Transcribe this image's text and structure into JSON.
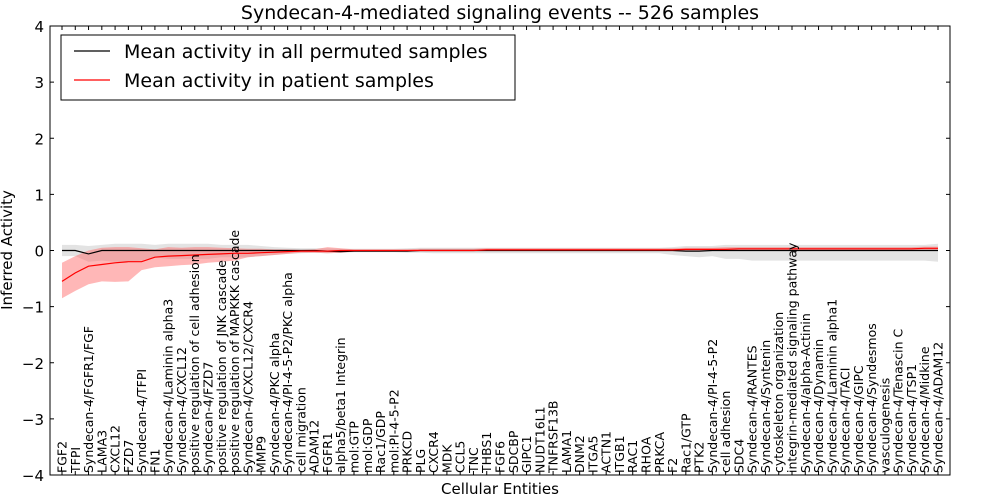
{
  "chart_data": {
    "type": "line",
    "title": "Syndecan-4-mediated signaling events -- 526 samples",
    "xlabel": "Cellular Entities",
    "ylabel": "Inferred Activity",
    "ylim": [
      -4,
      4
    ],
    "yticks": [
      -4,
      -3,
      -2,
      -1,
      0,
      1,
      2,
      3,
      4
    ],
    "ytick_labels": [
      "−4",
      "−3",
      "−2",
      "−1",
      "0",
      "1",
      "2",
      "3",
      "4"
    ],
    "legend_position": "top-left",
    "colors": {
      "permuted": "#000000",
      "patient": "#ff0000",
      "permuted_band": "#d0d0d0",
      "patient_band": "#ff6060"
    },
    "categories": [
      "FGF2",
      "TFPI",
      "Syndecan-4/FGFR1/FGF",
      "LAMA3",
      "CXCL12",
      "FZD7",
      "Syndecan-4/TFPI",
      "FN1",
      "Syndecan-4/Laminin alpha3",
      "Syndecan-4/CXCL12",
      "positive regulation of cell adhesion",
      "Syndecan-4/FZD7",
      "positive regulation of JNK cascade",
      "positive regulation of MAPKKK cascade",
      "Syndecan-4/CXCL12/CXCR4",
      "MMP9",
      "Syndecan-4/PKC alpha",
      "Syndecan-4/PI-4-5-P2/PKC alpha",
      "cell migration",
      "ADAM12",
      "FGFR1",
      "alpha5/beta1 Integrin",
      "mol:GTP",
      "mol:GDP",
      "Rac1/GDP",
      "mol:PI-4-5-P2",
      "PRKCD",
      "PLG",
      "CXCR4",
      "MDK",
      "CCL5",
      "TNC",
      "THBS1",
      "FGF6",
      "SDCBP",
      "GIPC1",
      "NUDT16L1",
      "TNFRSF13B",
      "LAMA1",
      "DNM2",
      "ITGA5",
      "ACTN1",
      "ITGB1",
      "RAC1",
      "RHOA",
      "PRKCA",
      "F2",
      "Rac1/GTP",
      "PTK2",
      "Syndecan-4/PI-4-5-P2",
      "cell adhesion",
      "SDC4",
      "Syndecan-4/RANTES",
      "Syndecan-4/Syntenin",
      "cytoskeleton organization",
      "integrin-mediated signaling pathway",
      "Syndecan-4/alpha-Actinin",
      "Syndecan-4/Dynamin",
      "Syndecan-4/Laminin alpha1",
      "Syndecan-4/TACI",
      "Syndecan-4/GIPC",
      "Syndecan-4/Syndesmos",
      "vasculogenesis",
      "Syndecan-4/Tenascin C",
      "Syndecan-4/TSP1",
      "Syndecan-4/Midkine",
      "Syndecan-4/ADAM12"
    ],
    "series": [
      {
        "name": "Mean activity in all permuted samples",
        "values": [
          0.0,
          0.0,
          -0.06,
          0.0,
          0.0,
          0.0,
          0.0,
          0.0,
          0.0,
          0.0,
          0.0,
          0.0,
          0.0,
          0.0,
          0.0,
          0.0,
          0.0,
          0.0,
          0.0,
          0.0,
          -0.01,
          -0.02,
          -0.01,
          -0.01,
          -0.01,
          -0.01,
          -0.01,
          0.0,
          0.0,
          0.0,
          0.0,
          0.0,
          0.0,
          0.0,
          0.0,
          0.0,
          0.0,
          0.0,
          0.0,
          0.0,
          0.0,
          0.0,
          0.0,
          0.0,
          0.0,
          0.0,
          0.0,
          -0.01,
          -0.01,
          0.0,
          0.0,
          0.0,
          0.0,
          0.0,
          0.0,
          0.0,
          0.0,
          0.0,
          0.0,
          0.0,
          0.0,
          0.0,
          0.0,
          0.0,
          0.0,
          0.0,
          0.0
        ],
        "lower": [
          -0.1,
          -0.1,
          -0.2,
          -0.18,
          -0.2,
          -0.2,
          -0.18,
          -0.12,
          -0.15,
          -0.15,
          -0.15,
          -0.15,
          -0.12,
          -0.12,
          -0.12,
          -0.1,
          -0.08,
          -0.06,
          -0.05,
          -0.04,
          -0.05,
          -0.04,
          -0.03,
          -0.03,
          -0.03,
          -0.03,
          -0.04,
          -0.04,
          -0.05,
          -0.05,
          -0.05,
          -0.05,
          -0.05,
          -0.05,
          -0.05,
          -0.05,
          -0.05,
          -0.05,
          -0.05,
          -0.05,
          -0.05,
          -0.05,
          -0.05,
          -0.05,
          -0.05,
          -0.05,
          -0.08,
          -0.1,
          -0.12,
          -0.1,
          -0.15,
          -0.15,
          -0.18,
          -0.18,
          -0.18,
          -0.18,
          -0.18,
          -0.18,
          -0.18,
          -0.18,
          -0.18,
          -0.18,
          -0.18,
          -0.18,
          -0.18,
          -0.18,
          -0.2
        ],
        "upper": [
          0.1,
          0.1,
          0.08,
          0.1,
          0.12,
          0.12,
          0.12,
          0.1,
          0.12,
          0.12,
          0.12,
          0.12,
          0.1,
          0.1,
          0.1,
          0.08,
          0.06,
          0.05,
          0.04,
          0.04,
          0.04,
          0.03,
          0.03,
          0.03,
          0.03,
          0.03,
          0.04,
          0.05,
          0.05,
          0.05,
          0.05,
          0.05,
          0.05,
          0.05,
          0.05,
          0.05,
          0.05,
          0.05,
          0.05,
          0.05,
          0.05,
          0.05,
          0.05,
          0.05,
          0.05,
          0.05,
          0.06,
          0.08,
          0.08,
          0.08,
          0.1,
          0.1,
          0.1,
          0.1,
          0.1,
          0.1,
          0.1,
          0.1,
          0.1,
          0.1,
          0.1,
          0.1,
          0.1,
          0.1,
          0.1,
          0.1,
          0.12
        ]
      },
      {
        "name": "Mean activity in patient samples",
        "values": [
          -0.55,
          -0.4,
          -0.28,
          -0.25,
          -0.22,
          -0.2,
          -0.2,
          -0.12,
          -0.1,
          -0.09,
          -0.08,
          -0.07,
          -0.06,
          -0.05,
          -0.05,
          -0.04,
          -0.03,
          -0.02,
          -0.01,
          -0.01,
          -0.01,
          0.0,
          0.0,
          0.0,
          0.0,
          0.0,
          0.0,
          0.0,
          0.0,
          0.0,
          0.0,
          0.0,
          0.01,
          0.01,
          0.01,
          0.01,
          0.01,
          0.01,
          0.01,
          0.01,
          0.01,
          0.01,
          0.01,
          0.01,
          0.01,
          0.01,
          0.01,
          0.02,
          0.02,
          0.02,
          0.02,
          0.03,
          0.03,
          0.03,
          0.03,
          0.03,
          0.03,
          0.03,
          0.03,
          0.03,
          0.03,
          0.03,
          0.03,
          0.03,
          0.03,
          0.04,
          0.04
        ],
        "lower": [
          -0.85,
          -0.72,
          -0.6,
          -0.55,
          -0.56,
          -0.55,
          -0.35,
          -0.3,
          -0.28,
          -0.26,
          -0.25,
          -0.22,
          -0.2,
          -0.18,
          -0.12,
          -0.1,
          -0.08,
          -0.06,
          -0.04,
          -0.04,
          -0.05,
          -0.04,
          -0.02,
          -0.01,
          -0.01,
          -0.01,
          0.0,
          0.0,
          0.0,
          0.0,
          0.0,
          0.0,
          0.0,
          0.0,
          0.0,
          0.0,
          0.0,
          0.0,
          0.0,
          0.0,
          0.0,
          0.0,
          0.0,
          0.0,
          0.0,
          0.0,
          0.0,
          0.0,
          0.0,
          0.0,
          0.0,
          0.0,
          0.0,
          0.0,
          0.0,
          0.0,
          0.0,
          0.0,
          0.0,
          0.0,
          0.0,
          0.0,
          0.0,
          0.0,
          0.0,
          0.0,
          0.0
        ],
        "upper": [
          -0.22,
          -0.1,
          0.0,
          0.05,
          0.06,
          0.06,
          0.04,
          0.02,
          0.06,
          0.05,
          0.06,
          0.06,
          0.05,
          0.04,
          0.03,
          0.03,
          0.02,
          0.02,
          0.01,
          0.02,
          0.06,
          0.04,
          0.02,
          0.02,
          0.02,
          0.02,
          0.02,
          0.03,
          0.03,
          0.03,
          0.03,
          0.03,
          0.04,
          0.04,
          0.04,
          0.04,
          0.04,
          0.04,
          0.04,
          0.04,
          0.04,
          0.04,
          0.04,
          0.04,
          0.04,
          0.04,
          0.04,
          0.05,
          0.05,
          0.05,
          0.06,
          0.06,
          0.06,
          0.06,
          0.06,
          0.06,
          0.06,
          0.06,
          0.06,
          0.06,
          0.06,
          0.06,
          0.06,
          0.06,
          0.06,
          0.07,
          0.07
        ]
      }
    ]
  }
}
